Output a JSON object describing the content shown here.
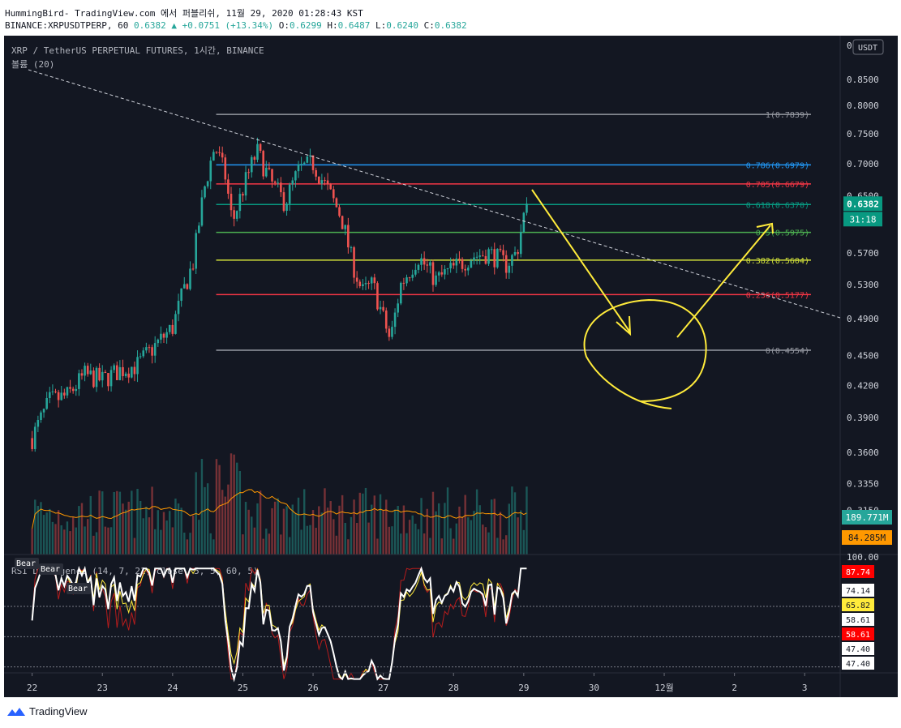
{
  "header": {
    "line1": "HummingBird- TradingView.com 에서 퍼블리쉬, 11월 29, 2020 01:28:43 KST",
    "symbol": "BINANCE:XRPUSDTPERP, 60",
    "last": "0.6382",
    "change": "+0.0751 (+13.34%)",
    "open_label": "O:",
    "open": "0.6299",
    "high_label": "H:",
    "high": "0.6487",
    "low_label": "L:",
    "low": "0.6240",
    "close_label": "C:",
    "close": "0.6382"
  },
  "pane_title": "XRP / TetherUS PERPETUAL FUTURES, 1시간, BINANCE",
  "volume_title": "볼륨 (20)",
  "currency_badge": "USDT",
  "brand": "TradingView",
  "colors": {
    "background": "#131722",
    "up": "#26a69a",
    "down": "#ef5350",
    "fib_1": "#9598a1",
    "fib_786": "#2196f3",
    "fib_705": "#f23645",
    "fib_618": "#089981",
    "fib_5": "#4caf50",
    "fib_382": "#cddc39",
    "fib_236": "#f23645",
    "annotation": "#ffeb3b"
  },
  "chart_data": [
    {
      "type": "candlestick",
      "title": "XRP / TetherUS PERPETUAL FUTURES, 1시간, BINANCE",
      "x_ticks": [
        "22",
        "23",
        "24",
        "25",
        "26",
        "27",
        "28",
        "29",
        "30",
        "12월",
        "2",
        "3"
      ],
      "y_ticks": [
        "0",
        "0.8500",
        "0.8000",
        "0.7500",
        "0.7000",
        "0.6500",
        "0.5700",
        "0.5300",
        "0.4900",
        "0.4500",
        "0.4200",
        "0.3900",
        "0.3600",
        "0.3350",
        "0.3150"
      ],
      "ylim": [
        0.3,
        0.9
      ],
      "y_scale": "log",
      "last_price": "0.6382",
      "countdown": "31:18",
      "close_path": [
        {
          "d": 22.0,
          "p": 0.372
        },
        {
          "d": 22.25,
          "p": 0.405
        },
        {
          "d": 22.5,
          "p": 0.41
        },
        {
          "d": 22.75,
          "p": 0.43
        },
        {
          "d": 23.0,
          "p": 0.425
        },
        {
          "d": 23.25,
          "p": 0.435
        },
        {
          "d": 23.5,
          "p": 0.44
        },
        {
          "d": 23.75,
          "p": 0.46
        },
        {
          "d": 24.0,
          "p": 0.48
        },
        {
          "d": 24.15,
          "p": 0.52
        },
        {
          "d": 24.3,
          "p": 0.56
        },
        {
          "d": 24.45,
          "p": 0.66
        },
        {
          "d": 24.6,
          "p": 0.73
        },
        {
          "d": 24.75,
          "p": 0.68
        },
        {
          "d": 24.85,
          "p": 0.61
        },
        {
          "d": 25.0,
          "p": 0.66
        },
        {
          "d": 25.2,
          "p": 0.72
        },
        {
          "d": 25.4,
          "p": 0.67
        },
        {
          "d": 25.6,
          "p": 0.64
        },
        {
          "d": 25.8,
          "p": 0.69
        },
        {
          "d": 26.0,
          "p": 0.7
        },
        {
          "d": 26.2,
          "p": 0.66
        },
        {
          "d": 26.4,
          "p": 0.62
        },
        {
          "d": 26.55,
          "p": 0.56
        },
        {
          "d": 26.7,
          "p": 0.52
        },
        {
          "d": 26.85,
          "p": 0.53
        },
        {
          "d": 27.0,
          "p": 0.49
        },
        {
          "d": 27.1,
          "p": 0.465
        },
        {
          "d": 27.25,
          "p": 0.53
        },
        {
          "d": 27.5,
          "p": 0.565
        },
        {
          "d": 27.75,
          "p": 0.535
        },
        {
          "d": 28.0,
          "p": 0.55
        },
        {
          "d": 28.25,
          "p": 0.565
        },
        {
          "d": 28.5,
          "p": 0.57
        },
        {
          "d": 28.75,
          "p": 0.555
        },
        {
          "d": 28.9,
          "p": 0.57
        },
        {
          "d": 29.0,
          "p": 0.62
        },
        {
          "d": 29.05,
          "p": 0.6382
        }
      ],
      "fibonacci": [
        {
          "label": "1(0.7839)",
          "value": 0.7839,
          "color": "#9598a1"
        },
        {
          "label": "0.786(0.6979)",
          "value": 0.6979,
          "color": "#2196f3"
        },
        {
          "label": "0.705(0.6679)",
          "value": 0.6679,
          "color": "#f23645"
        },
        {
          "label": "0.618(0.6370)",
          "value": 0.637,
          "color": "#089981"
        },
        {
          "label": "0.5(0.5975)",
          "value": 0.5975,
          "color": "#4caf50"
        },
        {
          "label": "0.382(0.5604)",
          "value": 0.5604,
          "color": "#cddc39"
        },
        {
          "label": "0.236(0.5177)",
          "value": 0.5177,
          "color": "#f23645"
        },
        {
          "label": "0(0.4554)",
          "value": 0.4554,
          "color": "#9598a1"
        }
      ]
    },
    {
      "type": "bar",
      "title": "볼륨 (20)",
      "labels": [
        "189.771M",
        "84.285M"
      ]
    },
    {
      "type": "line",
      "title": "RSI Divergence (14, 7, 21, close, 5, 5, 60, 5)",
      "y_ticks": [
        "100.00"
      ],
      "value_labels": [
        {
          "text": "87.74",
          "color": "#ff0000"
        },
        {
          "text": "74.14",
          "color": "#ffffff"
        },
        {
          "text": "65.82",
          "color": "#ffeb3b"
        },
        {
          "text": "58.61",
          "color": "#ffffff"
        },
        {
          "text": "58.61",
          "color": "#ff0000"
        },
        {
          "text": "47.40",
          "color": "#ffffff"
        },
        {
          "text": "47.40",
          "color": "#ffffff"
        }
      ],
      "markers": [
        "Bear",
        "Bear",
        "Bear"
      ],
      "levels": [
        70,
        50,
        30
      ]
    }
  ]
}
